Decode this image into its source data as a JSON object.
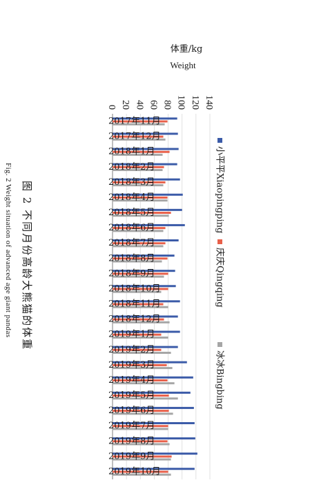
{
  "caption": {
    "cn": "图 2   不同月份高龄大熊猫的体重",
    "en": "Fig. 2 Weight situation of advanced age giant pandas"
  },
  "chart_data": {
    "type": "bar",
    "orientation": "horizontal",
    "ylabel_cn": "体重/kg",
    "ylabel_en": "Weight",
    "ylim": [
      0,
      140
    ],
    "yticks": [
      0,
      20,
      40,
      60,
      80,
      100,
      120,
      140
    ],
    "categories": [
      "2017年11月",
      "2017年12月",
      "2018年1月",
      "2018年2月",
      "2018年3月",
      "2018年4月",
      "2018年5月",
      "2018年6月",
      "2018年7月",
      "2018年8月",
      "2018年9月",
      "2018年10月",
      "2018年11月",
      "2018年12月",
      "2019年1月",
      "2019年2月",
      "2019年3月",
      "2019年4月",
      "2019年5月",
      "2019年6月",
      "2019年7月",
      "2019年8月",
      "2019年9月",
      "2019年10月"
    ],
    "series": [
      {
        "name": "小平平Xiaopingping",
        "color": "#3b5ba8",
        "values": [
          93,
          94,
          95,
          93,
          97,
          101,
          100,
          104,
          95,
          89,
          90,
          91,
          97,
          94,
          97,
          94,
          107,
          116,
          112,
          117,
          118,
          119,
          122,
          118
        ]
      },
      {
        "name": "庆庆Qingqing",
        "color": "#e8604a",
        "values": [
          79,
          73,
          82,
          74,
          76,
          79,
          84,
          76,
          76,
          79,
          80,
          80,
          73,
          74,
          70,
          70,
          78,
          79,
          81,
          81,
          80,
          79,
          85,
          80
        ]
      },
      {
        "name": "冰冰Bingbing",
        "color": "#a6a6a6",
        "values": [
          75,
          76,
          72,
          72,
          73,
          79,
          81,
          73,
          73,
          71,
          74,
          70,
          80,
          82,
          80,
          84,
          86,
          89,
          94,
          87,
          80,
          82,
          84,
          84
        ]
      }
    ]
  }
}
